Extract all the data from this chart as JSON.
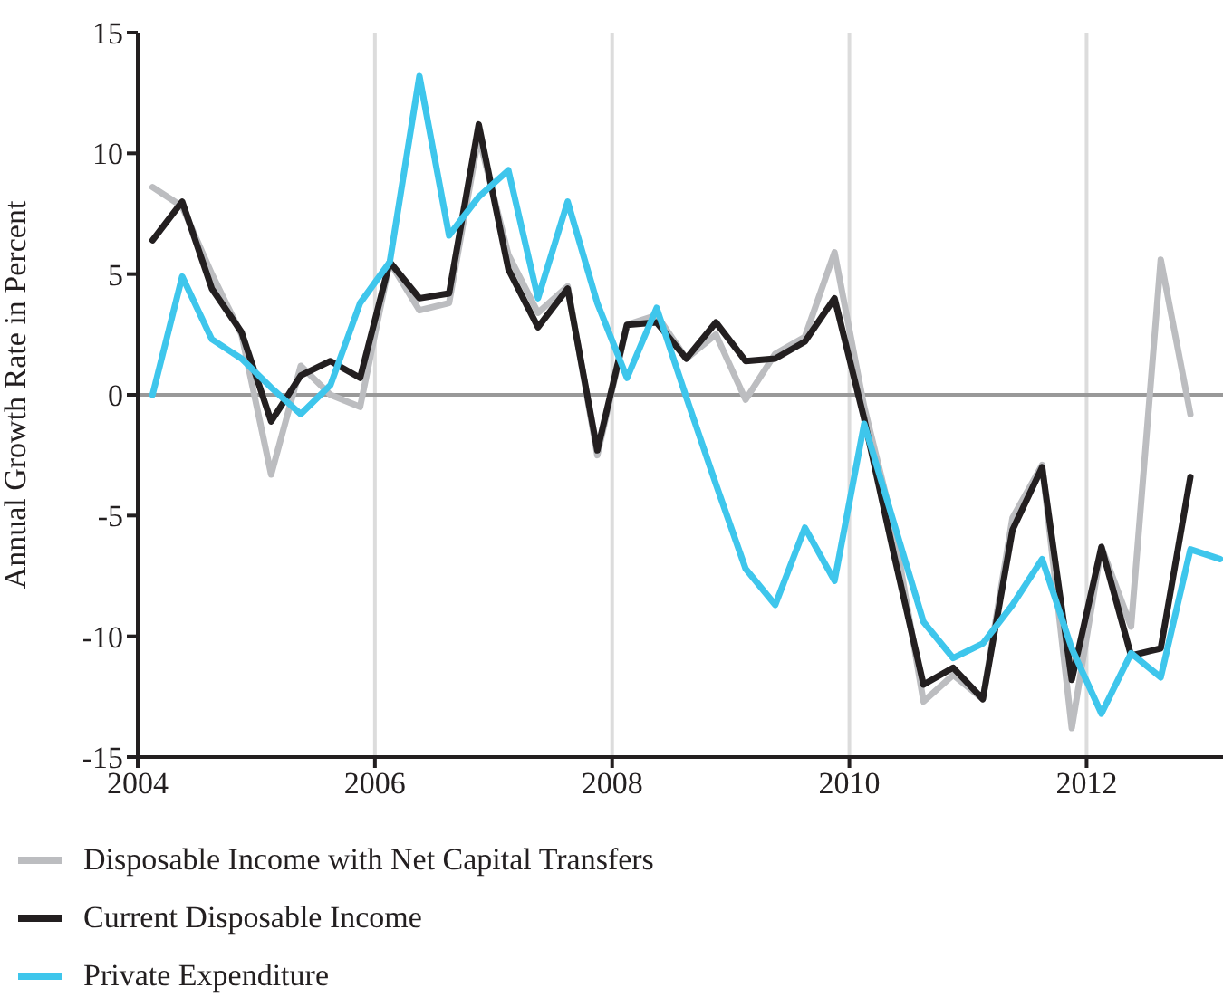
{
  "chart_data": {
    "type": "line",
    "ylabel": "Annual Growth Rate in Percent",
    "x": [
      2004.125,
      2004.375,
      2004.625,
      2004.875,
      2005.125,
      2005.375,
      2005.625,
      2005.875,
      2006.125,
      2006.375,
      2006.625,
      2006.875,
      2007.125,
      2007.375,
      2007.625,
      2007.875,
      2008.125,
      2008.375,
      2008.625,
      2008.875,
      2009.125,
      2009.375,
      2009.625,
      2009.875,
      2010.125,
      2010.375,
      2010.625,
      2010.875,
      2011.125,
      2011.375,
      2011.625,
      2011.875,
      2012.125,
      2012.375,
      2012.625,
      2012.875,
      2013.125
    ],
    "series": [
      {
        "name": "Disposable Income with Net Capital Transfers",
        "color": "#bcbdc0",
        "values": [
          8.6,
          7.8,
          5.0,
          2.5,
          -3.3,
          1.2,
          0.0,
          -0.5,
          5.5,
          3.5,
          3.8,
          10.7,
          5.8,
          3.4,
          4.5,
          -2.5,
          2.9,
          3.3,
          1.5,
          2.5,
          -0.2,
          1.7,
          2.4,
          5.9,
          -0.5,
          -5.5,
          -12.7,
          -11.6,
          -12.6,
          -5.1,
          -2.9,
          -13.8,
          -6.3,
          -9.6,
          5.6,
          -0.8,
          null
        ]
      },
      {
        "name": "Current Disposable Income",
        "color": "#231f20",
        "values": [
          6.4,
          8.0,
          4.4,
          2.6,
          -1.1,
          0.8,
          1.4,
          0.7,
          5.5,
          4.0,
          4.2,
          11.2,
          5.2,
          2.8,
          4.4,
          -2.3,
          2.9,
          3.0,
          1.5,
          3.0,
          1.4,
          1.5,
          2.2,
          4.0,
          -1.0,
          -6.6,
          -12.0,
          -11.3,
          -12.6,
          -5.6,
          -3.0,
          -11.8,
          -6.3,
          -10.8,
          -10.5,
          -3.4,
          null
        ]
      },
      {
        "name": "Private Expenditure",
        "color": "#3ec6ec",
        "values": [
          0.0,
          4.9,
          2.3,
          1.5,
          0.3,
          -0.8,
          0.4,
          3.8,
          5.5,
          13.2,
          6.6,
          8.2,
          9.3,
          4.0,
          8.0,
          3.8,
          0.7,
          3.6,
          -0.1,
          -3.7,
          -7.2,
          -8.7,
          -5.5,
          -7.7,
          -1.2,
          -5.3,
          -9.4,
          -10.9,
          -10.3,
          -8.7,
          -6.8,
          -10.5,
          -13.2,
          -10.7,
          -11.7,
          -6.4,
          -6.8
        ]
      }
    ],
    "xlim": [
      2004,
      2013.15
    ],
    "xticks": [
      2004,
      2006,
      2008,
      2010,
      2012
    ],
    "ylim": [
      -15,
      15
    ],
    "yticks": [
      -15,
      -10,
      -5,
      0,
      5,
      10,
      15
    ],
    "ref_lines": [
      {
        "axis": "y",
        "value": 0,
        "color": "#999999"
      }
    ],
    "grid": true,
    "legend": "bottom",
    "marker": "none",
    "line_style": "solid"
  }
}
